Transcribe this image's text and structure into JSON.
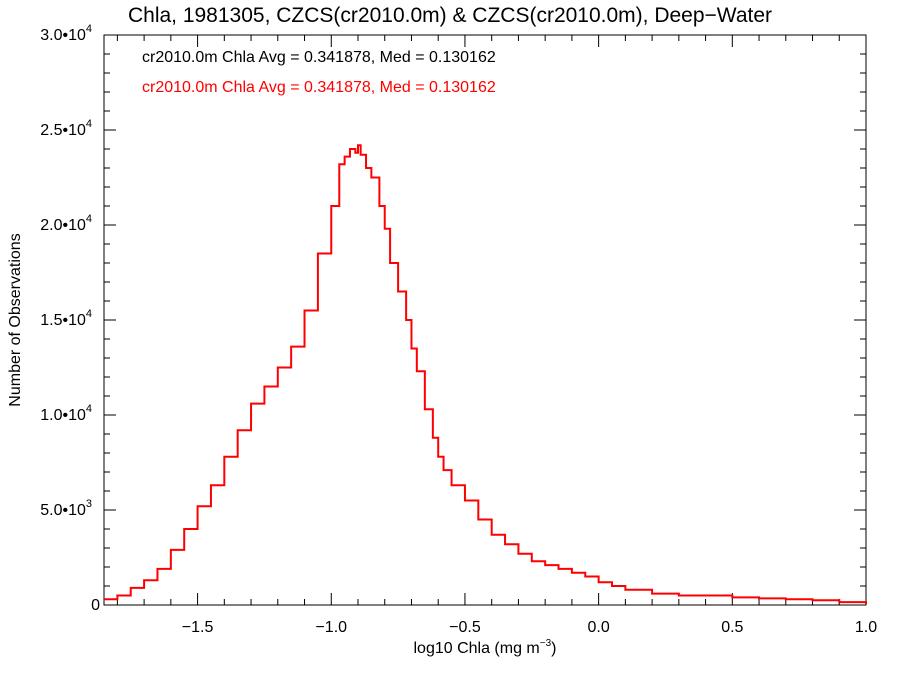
{
  "chart_data": {
    "type": "line",
    "title": "Chla, 1981305, CZCS(cr2010.0m) & CZCS(cr2010.0m), Deep−Water",
    "xlabel": "log10 Chla (mg m",
    "xlabel_sup": "−3",
    "xlabel_end": ")",
    "ylabel": "Number of Observations",
    "xlim": [
      -1.85,
      1.0
    ],
    "ylim": [
      0,
      30000
    ],
    "x_ticks": [
      {
        "value": -1.5,
        "label": "−1.5"
      },
      {
        "value": -1.0,
        "label": "−1.0"
      },
      {
        "value": -0.5,
        "label": "−0.5"
      },
      {
        "value": 0.0,
        "label": "0.0"
      },
      {
        "value": 0.5,
        "label": "0.5"
      },
      {
        "value": 1.0,
        "label": "1.0"
      }
    ],
    "y_ticks": [
      {
        "value": 0,
        "mant": "0",
        "exp": ""
      },
      {
        "value": 5000,
        "mant": "5.0•10",
        "exp": "3"
      },
      {
        "value": 10000,
        "mant": "1.0•10",
        "exp": "4"
      },
      {
        "value": 15000,
        "mant": "1.5•10",
        "exp": "4"
      },
      {
        "value": 20000,
        "mant": "2.0•10",
        "exp": "4"
      },
      {
        "value": 25000,
        "mant": "2.5•10",
        "exp": "4"
      },
      {
        "value": 30000,
        "mant": "3.0•10",
        "exp": "4"
      }
    ],
    "annotations": [
      {
        "text": "cr2010.0m Chla Avg = 0.341878, Med = 0.130162",
        "color": "#000000"
      },
      {
        "text": "cr2010.0m Chla Avg = 0.341878, Med = 0.130162",
        "color": "#ff0000"
      }
    ],
    "series_color": "#ff0000",
    "series": [
      {
        "x": [
          -1.85,
          -1.8,
          -1.75,
          -1.7,
          -1.65,
          -1.6,
          -1.55,
          -1.5,
          -1.45,
          -1.4,
          -1.35,
          -1.3,
          -1.25,
          -1.2,
          -1.15,
          -1.1,
          -1.05,
          -1.0,
          -0.97,
          -0.95,
          -0.93,
          -0.91,
          -0.9,
          -0.89,
          -0.87,
          -0.85,
          -0.82,
          -0.8,
          -0.78,
          -0.75,
          -0.72,
          -0.7,
          -0.68,
          -0.65,
          -0.62,
          -0.6,
          -0.58,
          -0.55,
          -0.5,
          -0.45,
          -0.4,
          -0.35,
          -0.3,
          -0.25,
          -0.2,
          -0.15,
          -0.1,
          -0.05,
          0.0,
          0.05,
          0.1,
          0.2,
          0.3,
          0.4,
          0.5,
          0.6,
          0.7,
          0.8,
          0.9,
          1.0
        ],
        "y": [
          300,
          500,
          900,
          1300,
          1900,
          2900,
          4000,
          5200,
          6300,
          7800,
          9200,
          10600,
          11500,
          12500,
          13600,
          15500,
          18500,
          21000,
          23200,
          23600,
          24000,
          23800,
          24200,
          23700,
          23000,
          22500,
          21000,
          19800,
          18000,
          16500,
          15000,
          13500,
          12300,
          10300,
          8800,
          7800,
          7100,
          6300,
          5500,
          4500,
          3700,
          3200,
          2700,
          2300,
          2100,
          1900,
          1700,
          1500,
          1200,
          1000,
          800,
          600,
          500,
          500,
          400,
          350,
          300,
          250,
          150,
          50
        ]
      }
    ]
  }
}
